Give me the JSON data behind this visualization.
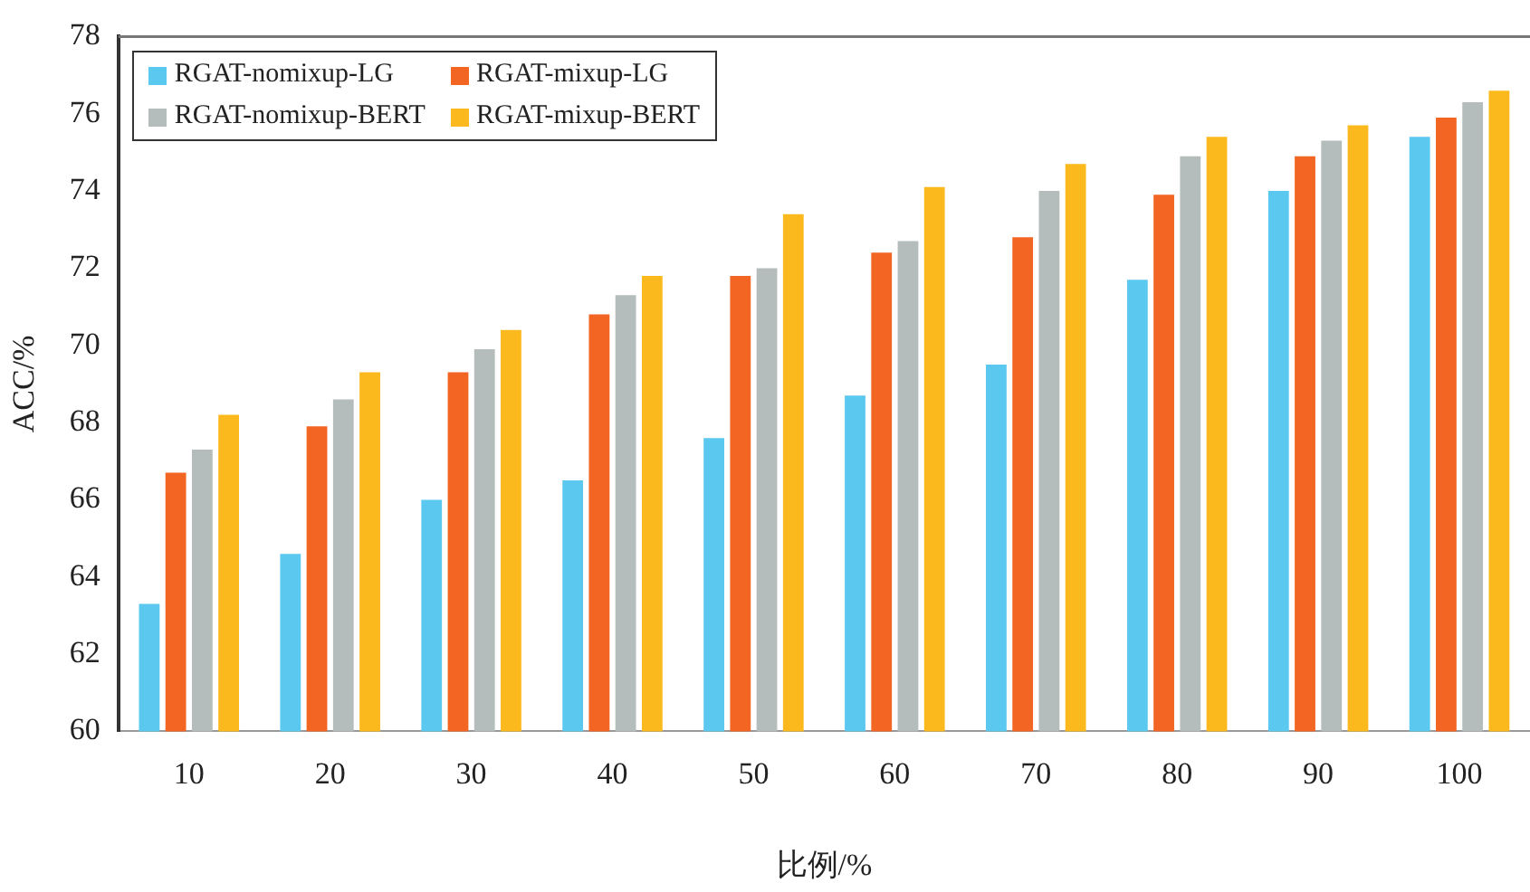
{
  "chart_data": {
    "type": "bar",
    "xlabel": "比例/%",
    "ylabel": "ACC/%",
    "categories": [
      "10",
      "20",
      "30",
      "40",
      "50",
      "60",
      "70",
      "80",
      "90",
      "100"
    ],
    "series": [
      {
        "name": "RGAT-nomixup-LG",
        "color": "#5bc8f0",
        "values": [
          63.3,
          64.6,
          66.0,
          66.5,
          67.6,
          68.7,
          69.5,
          71.7,
          74.0,
          75.4
        ]
      },
      {
        "name": "RGAT-mixup-LG",
        "color": "#f26522",
        "values": [
          66.7,
          67.9,
          69.3,
          70.8,
          71.8,
          72.4,
          72.8,
          73.9,
          74.9,
          75.9
        ]
      },
      {
        "name": "RGAT-nomixup-BERT",
        "color": "#b4bcbc",
        "values": [
          67.3,
          68.6,
          69.9,
          71.3,
          72.0,
          72.7,
          74.0,
          74.9,
          75.3,
          76.3
        ]
      },
      {
        "name": "RGAT-mixup-BERT",
        "color": "#fbb91e",
        "values": [
          68.2,
          69.3,
          70.4,
          71.8,
          73.4,
          74.1,
          74.7,
          75.4,
          75.7,
          76.6
        ]
      }
    ],
    "ylim": [
      60,
      78
    ],
    "yticks": [
      60,
      62,
      64,
      66,
      68,
      70,
      72,
      74,
      76,
      78
    ],
    "grid": false,
    "legend": "top left"
  }
}
